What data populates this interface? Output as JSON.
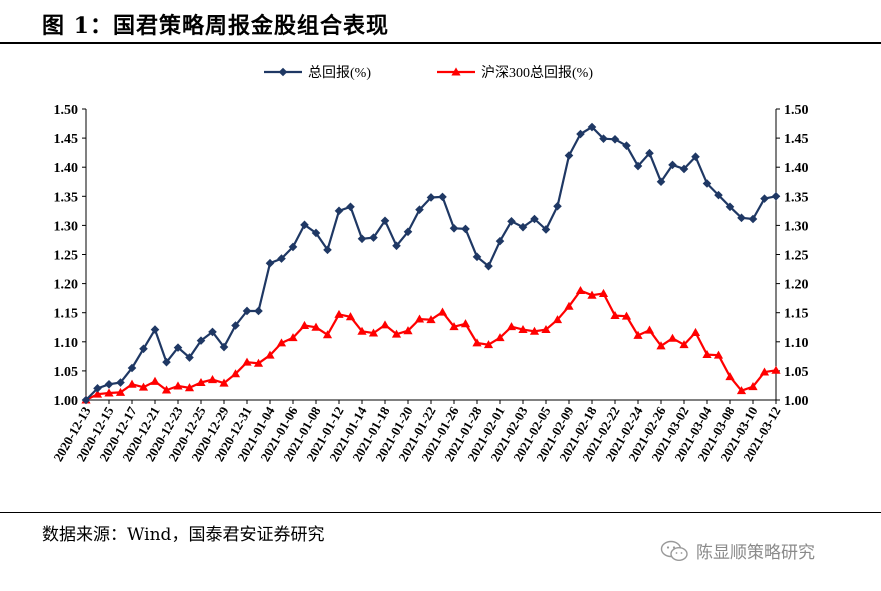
{
  "figure": {
    "title": "图 1：国君策略周报金股组合表现",
    "source": "数据来源：Wind，国泰君安证券研究",
    "watermark": "陈显顺策略研究"
  },
  "chart_data": {
    "type": "line",
    "title": "",
    "xlabel": "",
    "ylabel": "",
    "ylim": [
      1.0,
      1.5
    ],
    "y_ticks": [
      "1.50",
      "1.45",
      "1.40",
      "1.35",
      "1.30",
      "1.25",
      "1.20",
      "1.15",
      "1.10",
      "1.05",
      "1.00"
    ],
    "y2_ticks": [
      "1.50",
      "1.45",
      "1.40",
      "1.35",
      "1.30",
      "1.25",
      "1.20",
      "1.15",
      "1.10",
      "1.05",
      "1.00"
    ],
    "x_tick_labels": [
      "2020-12-13",
      "2020-12-15",
      "2020-12-17",
      "2020-12-21",
      "2020-12-23",
      "2020-12-25",
      "2020-12-29",
      "2020-12-31",
      "2021-01-04",
      "2021-01-06",
      "2021-01-08",
      "2021-01-12",
      "2021-01-14",
      "2021-01-18",
      "2021-01-20",
      "2021-01-22",
      "2021-01-26",
      "2021-01-28",
      "2021-02-01",
      "2021-02-03",
      "2021-02-05",
      "2021-02-09",
      "2021-02-18",
      "2021-02-22",
      "2021-02-24",
      "2021-02-26",
      "2021-03-02",
      "2021-03-04",
      "2021-03-08",
      "2021-03-10",
      "2021-03-12"
    ],
    "legend_position": "top-center",
    "series": [
      {
        "name": "总回报(%)",
        "color": "#1f3864",
        "marker": "diamond",
        "values": [
          1.0,
          1.02,
          1.027,
          1.03,
          1.055,
          1.088,
          1.121,
          1.065,
          1.09,
          1.073,
          1.102,
          1.117,
          1.091,
          1.128,
          1.153,
          1.153,
          1.235,
          1.243,
          1.263,
          1.301,
          1.287,
          1.258,
          1.325,
          1.332,
          1.277,
          1.279,
          1.308,
          1.265,
          1.289,
          1.327,
          1.348,
          1.349,
          1.295,
          1.294,
          1.246,
          1.23,
          1.273,
          1.307,
          1.297,
          1.311,
          1.293,
          1.333,
          1.42,
          1.457,
          1.469,
          1.449,
          1.448,
          1.437,
          1.402,
          1.424,
          1.375,
          1.404,
          1.397,
          1.418,
          1.372,
          1.352,
          1.332,
          1.313,
          1.311,
          1.346,
          1.35
        ]
      },
      {
        "name": "沪深300总回报(%)",
        "color": "#ff0000",
        "marker": "triangle",
        "values": [
          1.0,
          1.01,
          1.012,
          1.013,
          1.027,
          1.022,
          1.032,
          1.017,
          1.024,
          1.021,
          1.03,
          1.035,
          1.029,
          1.045,
          1.065,
          1.063,
          1.077,
          1.098,
          1.107,
          1.128,
          1.125,
          1.112,
          1.147,
          1.143,
          1.118,
          1.115,
          1.129,
          1.113,
          1.119,
          1.139,
          1.138,
          1.151,
          1.126,
          1.131,
          1.098,
          1.095,
          1.107,
          1.126,
          1.121,
          1.118,
          1.121,
          1.138,
          1.161,
          1.188,
          1.18,
          1.183,
          1.145,
          1.144,
          1.111,
          1.12,
          1.093,
          1.106,
          1.095,
          1.116,
          1.078,
          1.077,
          1.04,
          1.016,
          1.023,
          1.048,
          1.051
        ]
      }
    ]
  }
}
